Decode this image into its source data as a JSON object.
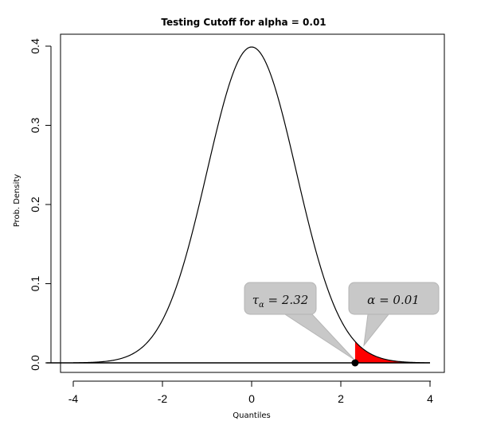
{
  "chart_data": {
    "type": "line",
    "title": "Testing Cutoff for alpha = 0.01",
    "xlabel": "Quantiles",
    "ylabel": "Prob. Density",
    "xlim": [
      -4.3,
      4.3
    ],
    "ylim": [
      -0.015,
      0.415
    ],
    "x_ticks": [
      "-4",
      "-2",
      "0",
      "2",
      "4"
    ],
    "x_tick_values": [
      -4,
      -2,
      0,
      2,
      4
    ],
    "y_ticks": [
      "0.0",
      "0.1",
      "0.2",
      "0.3",
      "0.4"
    ],
    "y_tick_values": [
      0,
      0.1,
      0.2,
      0.3,
      0.4
    ],
    "curve": {
      "distribution": "standard-normal",
      "x_range": [
        -4,
        4
      ]
    },
    "shaded_region": {
      "x_from": 2.32,
      "x_to": 4,
      "color": "#ff0000"
    },
    "cutoff_point": {
      "x": 2.32,
      "y": 0
    },
    "annotations": [
      {
        "id": "tau",
        "symbol": "τ",
        "subscript": "α",
        "text": " = 2.32",
        "points_to_x": 2.32,
        "points_to_y": 0
      },
      {
        "id": "alpha",
        "symbol": "α",
        "subscript": "",
        "text": " = 0.01",
        "points_to_x": 2.45,
        "points_to_y": 0.015
      }
    ],
    "grid": false,
    "legend": "none"
  }
}
